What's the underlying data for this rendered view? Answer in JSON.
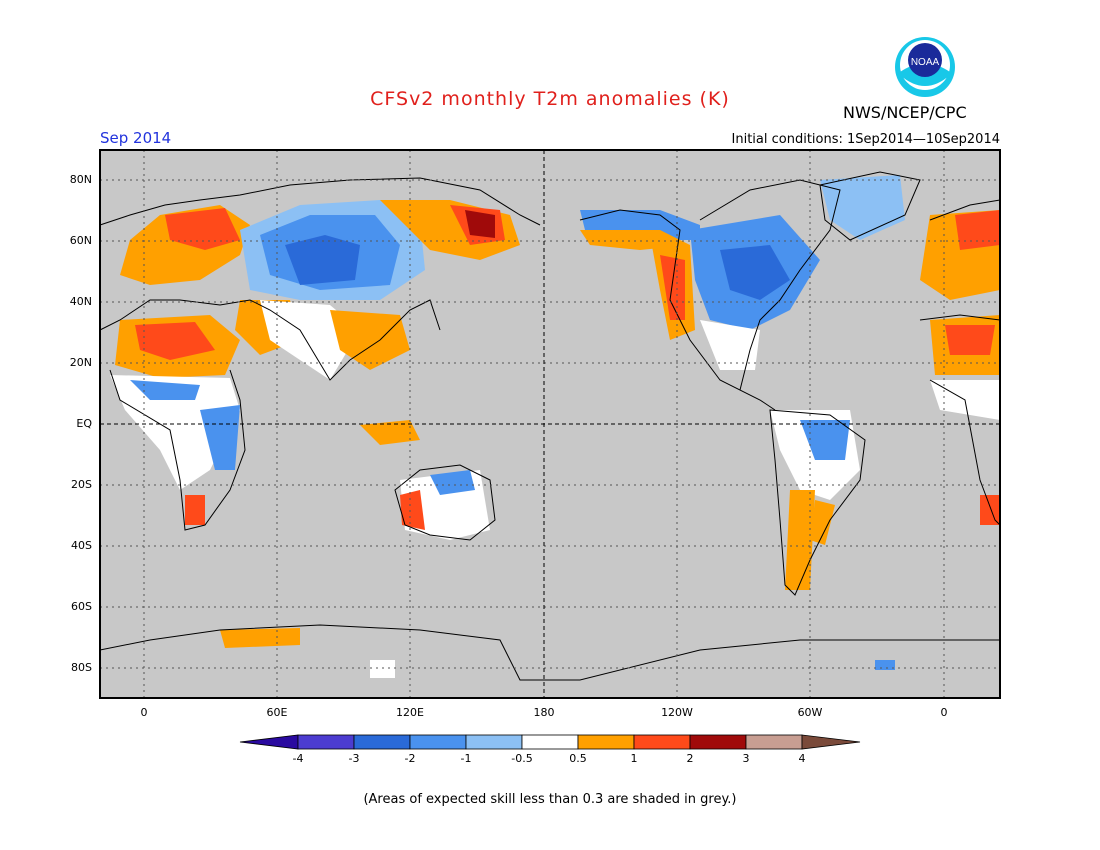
{
  "title": "CFSv2 monthly T2m anomalies (K)",
  "valid_month": "Sep 2014",
  "agency": "NWS/NCEP/CPC",
  "logo_text": "NOAA",
  "initial_conditions": "Initial conditions: 1Sep2014—10Sep2014",
  "footnote": "(Areas of expected skill less than 0.3 are shaded in grey.)",
  "map": {
    "lat_labels": [
      "80N",
      "60N",
      "40N",
      "20N",
      "EQ",
      "20S",
      "40S",
      "60S",
      "80S"
    ],
    "lon_labels": [
      "0",
      "60E",
      "120E",
      "180",
      "120W",
      "60W",
      "0"
    ],
    "background_color": "#c8c8c8"
  },
  "colorbar": {
    "labels": [
      "-4",
      "-3",
      "-2",
      "-1",
      "-0.5",
      "0.5",
      "1",
      "2",
      "3",
      "4"
    ],
    "colors": [
      "#2a0aa0",
      "#4c3cd0",
      "#2a6ad8",
      "#4a92ee",
      "#8cc0f4",
      "#ffffff",
      "#ffa000",
      "#ff4a1a",
      "#a00a0a",
      "#c89e92",
      "#7a4a3a"
    ]
  }
}
